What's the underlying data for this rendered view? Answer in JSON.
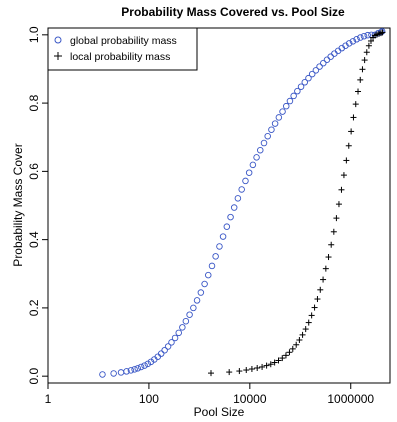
{
  "chart_data": {
    "type": "scatter",
    "title": "Probability Mass Covered vs. Pool Size",
    "xlabel": "Pool Size",
    "ylabel": "Probability Mass Cover",
    "x_scale": "log10",
    "xlim": [
      1,
      6000000
    ],
    "ylim": [
      -0.02,
      1.02
    ],
    "x_ticks": [
      1,
      100,
      10000,
      1000000
    ],
    "x_tick_labels": [
      "1",
      "100",
      "10000",
      "1000000"
    ],
    "y_ticks": [
      0.0,
      0.2,
      0.4,
      0.6,
      0.8,
      1.0
    ],
    "y_tick_labels": [
      "0.0",
      "0.2",
      "0.4",
      "0.6",
      "0.8",
      "1.0"
    ],
    "grid": false,
    "legend_position": "top-left",
    "series": [
      {
        "name": "global probability mass",
        "marker": "circle",
        "color": "#3a57c6",
        "x": [
          12,
          20,
          28,
          36,
          44,
          52,
          60,
          70,
          82,
          95,
          110,
          128,
          150,
          175,
          205,
          240,
          280,
          330,
          390,
          460,
          540,
          640,
          760,
          900,
          1070,
          1270,
          1500,
          1780,
          2100,
          2500,
          2950,
          3500,
          4150,
          4900,
          5800,
          6900,
          8200,
          9700,
          11500,
          13600,
          16100,
          19100,
          22600,
          26800,
          31700,
          37600,
          44500,
          52700,
          62400,
          73900,
          87500,
          103600,
          122700,
          145300,
          172100,
          203800,
          241300,
          285700,
          338300,
          400600,
          474400,
          561800,
          665200,
          787800,
          932800,
          1104600,
          1308000,
          1548800,
          1834000,
          2171800,
          2571700,
          3000000,
          3500000,
          4000000,
          4200000
        ],
        "y": [
          0.005,
          0.008,
          0.011,
          0.014,
          0.017,
          0.02,
          0.023,
          0.027,
          0.031,
          0.036,
          0.042,
          0.049,
          0.057,
          0.066,
          0.076,
          0.087,
          0.099,
          0.112,
          0.127,
          0.143,
          0.161,
          0.18,
          0.2,
          0.222,
          0.245,
          0.27,
          0.296,
          0.323,
          0.351,
          0.38,
          0.409,
          0.438,
          0.466,
          0.494,
          0.521,
          0.547,
          0.572,
          0.596,
          0.619,
          0.641,
          0.662,
          0.683,
          0.703,
          0.722,
          0.74,
          0.758,
          0.775,
          0.791,
          0.806,
          0.821,
          0.835,
          0.848,
          0.861,
          0.873,
          0.885,
          0.896,
          0.907,
          0.917,
          0.927,
          0.936,
          0.945,
          0.953,
          0.961,
          0.968,
          0.975,
          0.981,
          0.987,
          0.992,
          0.996,
          0.999,
          1.0,
          1.0,
          1.005,
          1.008,
          1.01
        ]
      },
      {
        "name": "local probability mass",
        "marker": "plus",
        "color": "#000000",
        "x": [
          1700,
          3900,
          6200,
          8500,
          11000,
          14000,
          17500,
          21500,
          26000,
          31000,
          37000,
          44000,
          52000,
          61000,
          71000,
          83000,
          96000,
          111000,
          128000,
          147000,
          168000,
          192000,
          219000,
          249000,
          283000,
          321000,
          363000,
          410000,
          462000,
          520000,
          584000,
          655000,
          733000,
          819000,
          914000,
          1018000,
          1132000,
          1257000,
          1394000,
          1544000,
          1707000,
          1885000,
          2079000,
          2290000,
          2519000,
          2767000,
          3035000,
          3324000,
          3636000,
          3972000,
          4250000
        ],
        "y": [
          0.009,
          0.012,
          0.015,
          0.018,
          0.021,
          0.024,
          0.027,
          0.031,
          0.035,
          0.04,
          0.046,
          0.053,
          0.061,
          0.07,
          0.08,
          0.092,
          0.106,
          0.121,
          0.138,
          0.157,
          0.178,
          0.201,
          0.226,
          0.253,
          0.283,
          0.315,
          0.349,
          0.385,
          0.423,
          0.463,
          0.504,
          0.546,
          0.589,
          0.632,
          0.675,
          0.717,
          0.758,
          0.797,
          0.834,
          0.868,
          0.899,
          0.926,
          0.949,
          0.968,
          0.982,
          0.992,
          0.998,
          1.001,
          1.003,
          1.005,
          1.007
        ]
      }
    ]
  }
}
